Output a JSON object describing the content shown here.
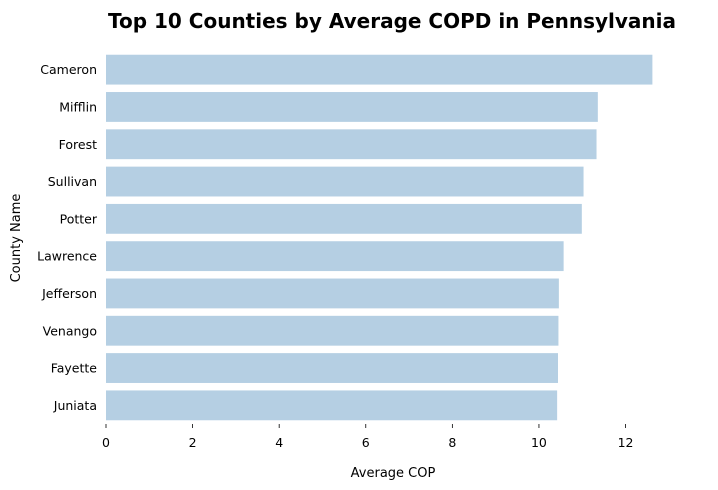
{
  "chart_data": {
    "type": "bar",
    "orientation": "horizontal",
    "title": "Top 10 Counties by Average COPD in Pennsylvania",
    "xlabel": "Average COP",
    "ylabel": "County Name",
    "categories": [
      "Cameron",
      "Mifflin",
      "Forest",
      "Sullivan",
      "Potter",
      "Lawrence",
      "Jefferson",
      "Venango",
      "Fayette",
      "Juniata"
    ],
    "values": [
      12.62,
      11.36,
      11.33,
      11.03,
      10.99,
      10.57,
      10.46,
      10.45,
      10.44,
      10.42
    ],
    "xlim": [
      0,
      13.05
    ],
    "xticks": [
      "0",
      "2",
      "4",
      "6",
      "8",
      "10",
      "12"
    ],
    "bar_color": "#b5cfe3",
    "grid": false,
    "legend": "none"
  }
}
